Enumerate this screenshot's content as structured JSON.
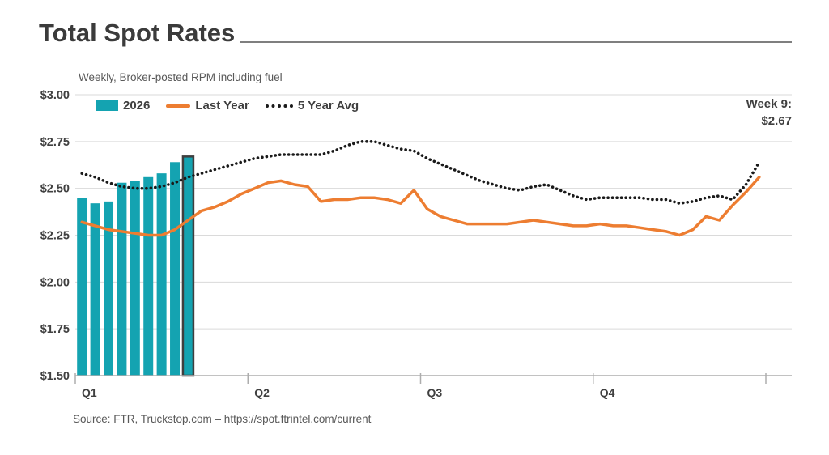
{
  "header": {
    "title": "Total Spot Rates",
    "subtitle": "Weekly, Broker-posted RPM including fuel"
  },
  "legend": {
    "items": [
      {
        "label": "2026",
        "type": "bar"
      },
      {
        "label": "Last Year",
        "type": "line"
      },
      {
        "label": "5 Year Avg",
        "type": "dotted"
      }
    ]
  },
  "annotation": {
    "line1": "Week 9:",
    "line2": "$2.67"
  },
  "source": {
    "text": "Source: FTR, Truckstop.com – https://spot.ftrintel.com/current"
  },
  "colors": {
    "bar": "#14A3B1",
    "line": "#ED7D31",
    "dotted": "#1A1A1A",
    "highlight_stroke": "#3F3F3F",
    "grid": "#DADADA",
    "axis": "#ADADAD",
    "text": "#404040"
  },
  "chart_data": {
    "type": "combo",
    "title": "Total Spot Rates",
    "subtitle": "Weekly, Broker-posted RPM including fuel",
    "x_axis": {
      "categories": [
        "Q1",
        "Q2",
        "Q3",
        "Q4"
      ],
      "weeks_total": 52,
      "quarter_boundary_weeks": [
        0,
        13,
        26,
        39,
        52
      ]
    },
    "y_axis": {
      "tick_labels": [
        "$3.00",
        "$2.75",
        "$2.50",
        "$2.25",
        "$2.00",
        "$1.75",
        "$1.50"
      ],
      "min": 1.5,
      "max": 3.0,
      "step": 0.25,
      "grid": true
    },
    "callout": {
      "week": 9,
      "value": "$2.67"
    },
    "series": [
      {
        "name": "2026",
        "type": "bar",
        "highlight_last": true,
        "values": [
          2.45,
          2.42,
          2.43,
          2.53,
          2.54,
          2.56,
          2.58,
          2.64,
          2.67
        ]
      },
      {
        "name": "Last Year",
        "type": "line",
        "values": [
          2.32,
          2.3,
          2.28,
          2.27,
          2.26,
          2.25,
          2.25,
          2.28,
          2.33,
          2.38,
          2.4,
          2.43,
          2.47,
          2.5,
          2.53,
          2.54,
          2.52,
          2.51,
          2.43,
          2.44,
          2.44,
          2.45,
          2.45,
          2.44,
          2.42,
          2.49,
          2.39,
          2.35,
          2.33,
          2.31,
          2.31,
          2.31,
          2.31,
          2.32,
          2.33,
          2.32,
          2.31,
          2.3,
          2.3,
          2.31,
          2.3,
          2.3,
          2.29,
          2.28,
          2.27,
          2.25,
          2.28,
          2.35,
          2.33,
          2.41,
          2.48,
          2.56
        ]
      },
      {
        "name": "5 Year Avg",
        "type": "dotted-line",
        "values": [
          2.58,
          2.56,
          2.53,
          2.51,
          2.5,
          2.5,
          2.51,
          2.53,
          2.56,
          2.58,
          2.6,
          2.62,
          2.64,
          2.66,
          2.67,
          2.68,
          2.68,
          2.68,
          2.68,
          2.7,
          2.73,
          2.75,
          2.75,
          2.73,
          2.71,
          2.7,
          2.66,
          2.63,
          2.6,
          2.57,
          2.54,
          2.52,
          2.5,
          2.49,
          2.51,
          2.52,
          2.49,
          2.46,
          2.44,
          2.45,
          2.45,
          2.45,
          2.45,
          2.44,
          2.44,
          2.42,
          2.43,
          2.45,
          2.46,
          2.44,
          2.52,
          2.64
        ]
      }
    ]
  }
}
